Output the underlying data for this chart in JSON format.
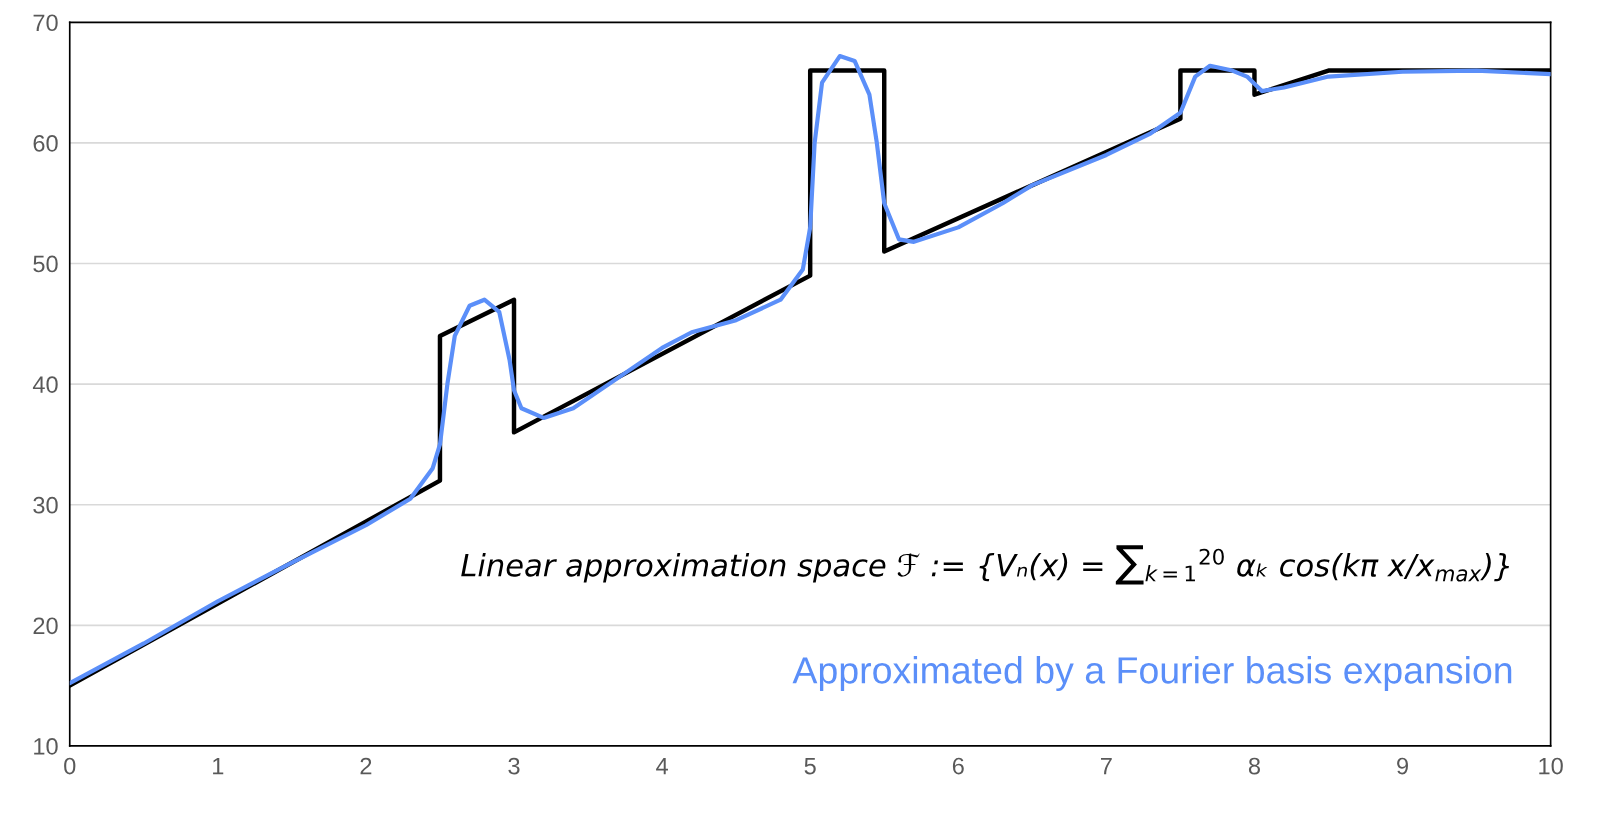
{
  "chart_data": {
    "type": "line",
    "series": [
      {
        "color": "#000000",
        "x": [
          0,
          2.5,
          2.5,
          3,
          3,
          5,
          5,
          5.5,
          5.5,
          7.5,
          7.5,
          8,
          8,
          8.5,
          10
        ],
        "values": [
          15,
          32,
          44,
          47,
          36,
          49,
          66,
          66,
          51,
          62,
          66,
          66,
          64,
          66,
          66
        ]
      },
      {
        "color": "#5b8ff9",
        "x": [
          0,
          0.5,
          1,
          1.5,
          2,
          2.3,
          2.45,
          2.5,
          2.55,
          2.6,
          2.7,
          2.8,
          2.9,
          2.97,
          3.0,
          3.05,
          3.2,
          3.4,
          3.7,
          4,
          4.2,
          4.5,
          4.8,
          4.95,
          5.0,
          5.03,
          5.08,
          5.2,
          5.3,
          5.4,
          5.45,
          5.5,
          5.6,
          5.7,
          6,
          6.3,
          6.5,
          7,
          7.3,
          7.5,
          7.6,
          7.7,
          7.85,
          7.95,
          8.05,
          8.2,
          8.5,
          9,
          9.5,
          10
        ],
        "values": [
          15.2,
          18.5,
          22,
          25.2,
          28.3,
          30.5,
          33,
          35,
          40,
          44,
          46.5,
          47,
          46,
          42,
          39.5,
          38,
          37.2,
          38,
          40.5,
          43,
          44.3,
          45.3,
          47,
          49.5,
          53,
          60,
          65,
          67.2,
          66.8,
          64,
          60,
          55,
          52,
          51.8,
          53,
          55,
          56.5,
          59,
          60.8,
          62.5,
          65.5,
          66.4,
          66,
          65.5,
          64.3,
          64.6,
          65.5,
          65.9,
          66,
          65.7
        ]
      }
    ],
    "xlim": [
      0,
      10
    ],
    "xticks": [
      0,
      1,
      2,
      3,
      4,
      5,
      6,
      7,
      8,
      9,
      10
    ],
    "ylim": [
      10,
      70
    ],
    "yticks": [
      10,
      20,
      30,
      40,
      50,
      60,
      70
    ],
    "grid": "y",
    "marker": "none",
    "line_style": "solid",
    "annotations": [
      {
        "text": "Linear approximation space ℱ := {Vₙ(x) = ∑$_{k=1}$$^{20}$ αₖ cos(kπ x/x$_{max}$)}"
      },
      {
        "text": "Approximated by a Fourier basis expansion"
      }
    ]
  }
}
